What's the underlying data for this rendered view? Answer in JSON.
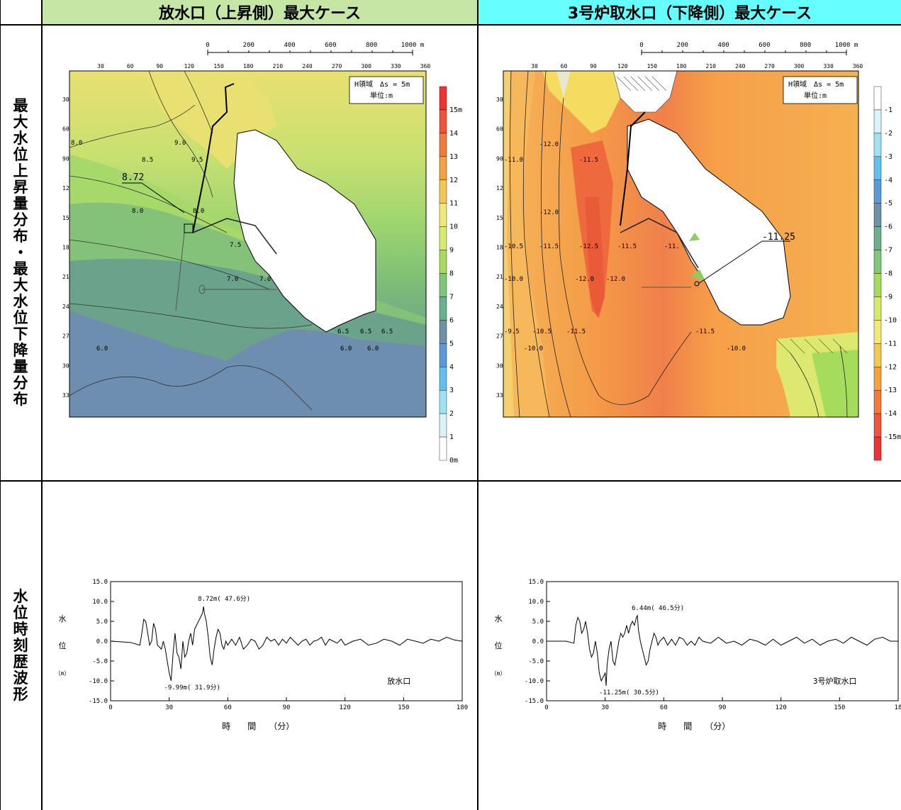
{
  "headers": {
    "left_case": "放水口（上昇側）最大ケース",
    "right_case": "3号炉取水口（下降側）最大ケース",
    "left_bg": "#c6e6a6",
    "right_bg": "#66ffff"
  },
  "row_labels": {
    "distribution": "最大水位上昇量分布・最大水位下降量分布",
    "waveform": "水位時刻歴波形"
  },
  "maps": {
    "scale_ticks": [
      "0",
      "200",
      "400",
      "600",
      "800",
      "1000 m"
    ],
    "x_ticks": [
      "30",
      "60",
      "90",
      "120",
      "150",
      "180",
      "210",
      "240",
      "270",
      "300",
      "330",
      "360"
    ],
    "y_ticks": [
      "30",
      "60",
      "90",
      "120",
      "150",
      "180",
      "210",
      "240",
      "270",
      "300",
      "330"
    ],
    "left": {
      "info_line1": "H領域　Δs = 5m",
      "info_line2": "単位:m",
      "point_label": "8.72",
      "contours": [
        "8.0",
        "8.5",
        "9.0",
        "9.5",
        "8.0",
        "8.0",
        "7.5",
        "7.0",
        "7.0",
        "6.5",
        "6.5",
        "6.5",
        "6.0",
        "6.0",
        "6.0"
      ],
      "colorbar_labels": [
        "15m",
        "14",
        "13",
        "12",
        "11",
        "10",
        "9",
        "8",
        "7",
        "6",
        "5",
        "4",
        "3",
        "2",
        "1",
        "0m"
      ],
      "colorbar_colors": [
        "#ee3333",
        "#f0543a",
        "#f47a3c",
        "#f6a03e",
        "#f4c850",
        "#f2e878",
        "#d8ea6a",
        "#a6dc5c",
        "#7ec878",
        "#6ab08a",
        "#7090a8",
        "#5a9ad8",
        "#60c0ee",
        "#a0e0f4",
        "#d8f4f8",
        "#ffffff"
      ]
    },
    "right": {
      "info_line1": "H領域　Δs = 5m",
      "info_line2": "単位:m",
      "point_label": "-11.25",
      "contours": [
        "-12.0",
        "-11.5",
        "-11.0",
        "-12.0",
        "-10.5",
        "-11.5",
        "-12.5",
        "-11.5",
        "-11.",
        "-10.0",
        "-12.0",
        "-12.0",
        "-9.5",
        "-10.5",
        "-11.5",
        "-10.0",
        "-11.5",
        "-10.0"
      ],
      "colorbar_labels": [
        "-1",
        "-2",
        "-3",
        "-4",
        "-5",
        "-6",
        "-7",
        "-8",
        "-9",
        "-10",
        "-11",
        "-12",
        "-13",
        "-14",
        "-15m"
      ],
      "colorbar_colors": [
        "#ffffff",
        "#d8f4f8",
        "#a0e0f4",
        "#60c0ee",
        "#5a9ad8",
        "#7090a8",
        "#6ab08a",
        "#7ec878",
        "#a6dc5c",
        "#d8ea6a",
        "#f2e878",
        "#f4c850",
        "#f6a03e",
        "#f47a3c",
        "#f0543a",
        "#ee3333"
      ]
    }
  },
  "chart_data": [
    {
      "type": "line",
      "title": "放水口",
      "xlabel": "時　　間　　（分）",
      "ylabel": "水位（m）",
      "xlim": [
        0,
        180
      ],
      "ylim": [
        -15,
        15
      ],
      "x_ticks": [
        "0",
        "30",
        "60",
        "90",
        "120",
        "150",
        "180"
      ],
      "y_ticks": [
        "15.0",
        "10.0",
        "5.0",
        "0.0",
        "-5.0",
        "-10.0",
        "-15.0"
      ],
      "annotations": [
        "8.72m( 47.6分)",
        "-9.99m( 31.9分)"
      ],
      "series": [
        {
          "x": [
            0,
            10,
            15,
            16,
            17,
            18,
            19,
            20,
            21,
            22,
            23,
            24,
            25,
            26,
            27,
            28,
            29,
            30,
            31,
            32,
            33,
            34,
            35,
            36,
            37,
            38,
            39,
            40,
            41,
            42,
            43,
            44,
            45,
            46,
            47,
            47.6,
            48,
            49,
            50,
            51,
            52,
            53,
            54,
            55,
            56,
            57,
            58,
            59,
            60,
            62,
            64,
            66,
            68,
            70,
            72,
            74,
            76,
            78,
            80,
            82,
            84,
            86,
            88,
            90,
            92,
            94,
            96,
            98,
            100,
            102,
            104,
            106,
            108,
            110,
            112,
            114,
            116,
            118,
            120,
            124,
            128,
            132,
            136,
            140,
            144,
            148,
            152,
            156,
            160,
            164,
            168,
            172,
            176,
            180
          ],
          "y": [
            0,
            -0.3,
            -1,
            2,
            5.5,
            5,
            2,
            -1,
            0,
            4.5,
            3,
            -1,
            -1.5,
            -2,
            0,
            -2,
            -5,
            -8,
            -9.99,
            -3,
            2,
            -3,
            -4,
            -7,
            0,
            -4,
            -3,
            0,
            2,
            -1,
            3,
            4,
            5,
            6,
            7,
            8.72,
            7,
            5,
            1,
            -4,
            -6,
            -2,
            1,
            3,
            2,
            -1,
            -2,
            0,
            -1,
            0.5,
            -1,
            1,
            -2,
            -1,
            0.5,
            0,
            -2,
            -1,
            1,
            0,
            0.5,
            -1,
            0.5,
            -0.5,
            1,
            0,
            -1,
            0,
            0.5,
            -1,
            0,
            0.3,
            1,
            -1,
            0.5,
            0,
            -0.5,
            0.5,
            -1,
            0,
            0.5,
            -1,
            -0.5,
            0.5,
            0,
            -1,
            0.5,
            0,
            -0.5,
            0.5,
            0,
            1,
            0.3,
            0
          ]
        }
      ]
    },
    {
      "type": "line",
      "title": "3号炉取水口",
      "xlabel": "時　　間　　（分）",
      "ylabel": "水位（m）",
      "xlim": [
        0,
        180
      ],
      "ylim": [
        -15,
        15
      ],
      "x_ticks": [
        "0",
        "30",
        "60",
        "90",
        "120",
        "150",
        "18"
      ],
      "y_ticks": [
        "15.0",
        "10.0",
        "5.0",
        "0.0",
        "-5.0",
        "-10.0",
        "-15.0"
      ],
      "annotations": [
        "6.44m( 46.5分)",
        "-11.25m( 30.5分)"
      ],
      "series": [
        {
          "x": [
            0,
            10,
            14,
            15,
            16,
            17,
            18,
            19,
            20,
            21,
            22,
            23,
            24,
            25,
            26,
            27,
            28,
            29,
            30,
            30.5,
            31,
            32,
            33,
            34,
            35,
            36,
            37,
            38,
            39,
            40,
            41,
            42,
            43,
            44,
            45,
            46,
            46.5,
            47,
            48,
            49,
            50,
            51,
            52,
            53,
            54,
            55,
            56,
            57,
            58,
            60,
            62,
            64,
            66,
            68,
            70,
            72,
            74,
            76,
            78,
            80,
            84,
            88,
            92,
            96,
            100,
            104,
            108,
            112,
            116,
            120,
            124,
            128,
            132,
            136,
            140,
            144,
            148,
            152,
            156,
            160,
            164,
            168,
            172,
            176,
            180
          ],
          "y": [
            0,
            0,
            -0.5,
            4,
            6,
            5,
            2,
            3,
            5,
            2,
            -2,
            -4,
            -3,
            0,
            -3,
            -8,
            -10,
            -9,
            -8,
            -11.25,
            -6,
            -2,
            0,
            -5,
            -6,
            -3,
            0,
            2,
            1,
            2,
            4,
            2,
            4,
            5,
            4,
            6,
            6.44,
            3,
            0,
            -2,
            -4,
            -6,
            -5,
            -2,
            0,
            2,
            1,
            -1,
            0,
            1,
            -1,
            0.5,
            -1,
            1,
            0.5,
            -1,
            0,
            -1,
            1,
            0,
            -0.5,
            1,
            -0.5,
            0,
            -1,
            0.5,
            0,
            -1,
            0.5,
            -1,
            0,
            1,
            -0.5,
            0.5,
            -1,
            0,
            0.5,
            -0.5,
            1,
            0,
            -1,
            0.5,
            1,
            0,
            0
          ]
        }
      ]
    }
  ]
}
